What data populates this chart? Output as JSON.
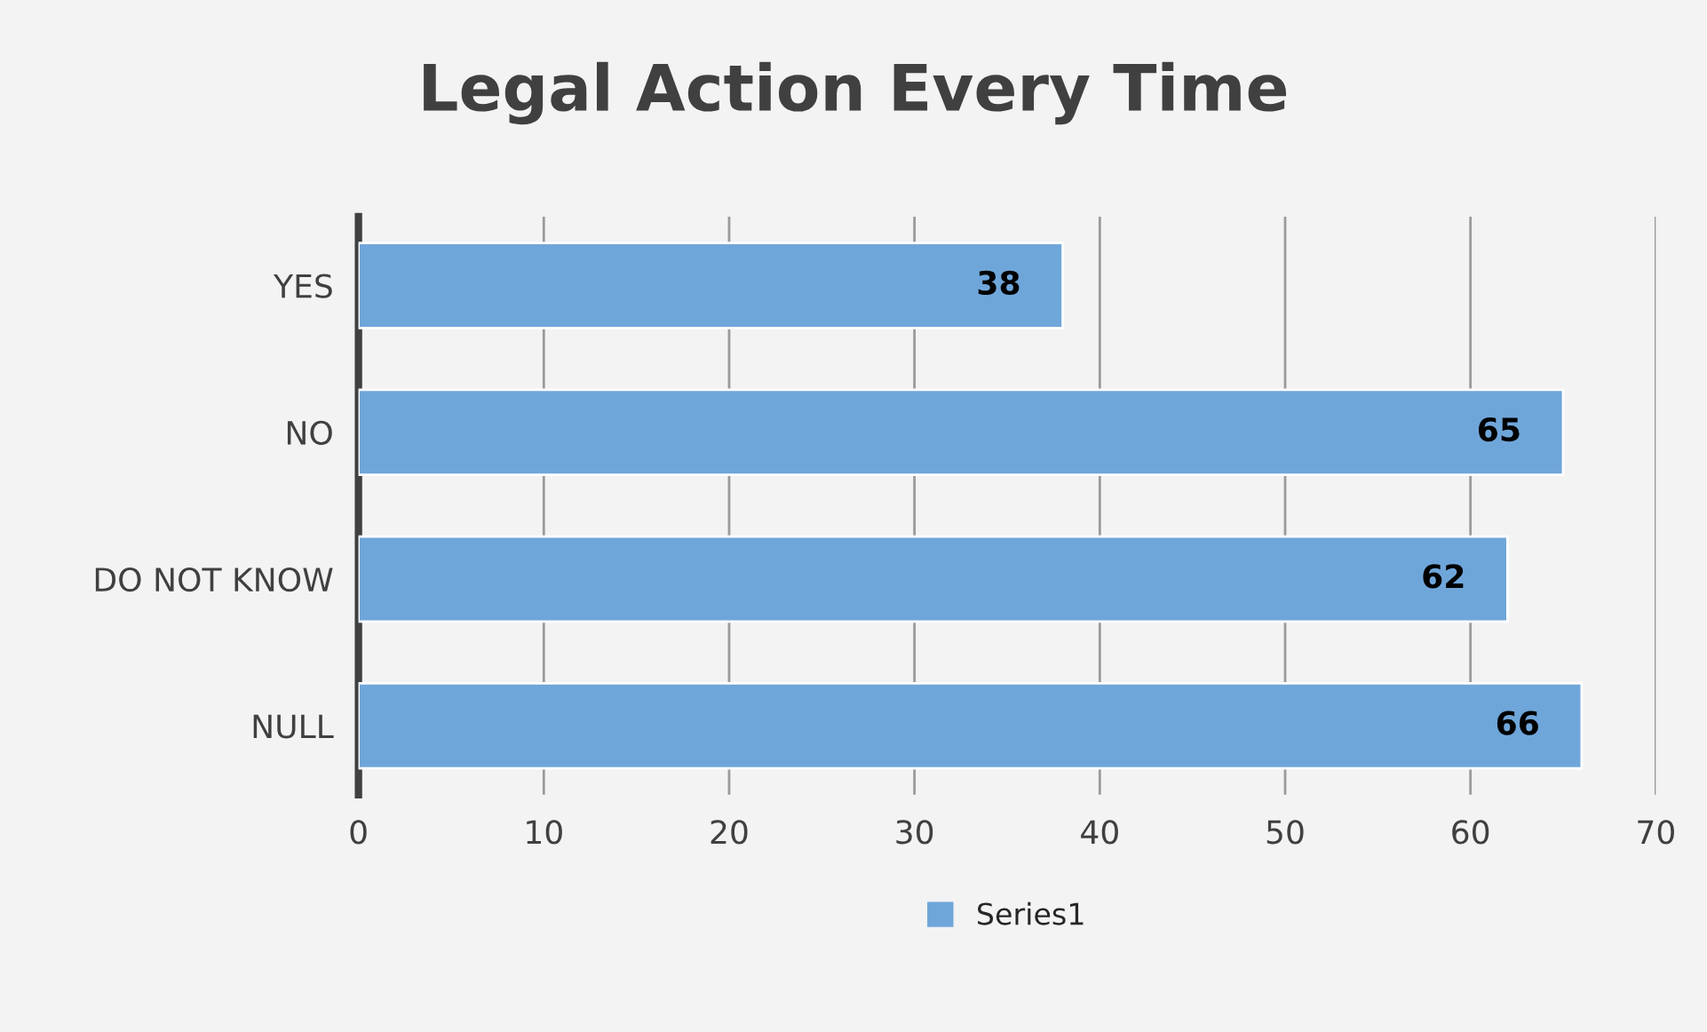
{
  "chart_data": {
    "type": "bar",
    "orientation": "horizontal",
    "title": "Legal Action Every Time",
    "categories": [
      "YES",
      "NO",
      "DO NOT KNOW",
      "NULL"
    ],
    "series": [
      {
        "name": "Series1",
        "color": "#6fa6da",
        "values": [
          38,
          65,
          62,
          66
        ]
      }
    ],
    "xlim": [
      0,
      70
    ],
    "xticks": [
      0,
      10,
      20,
      30,
      40,
      50,
      60,
      70
    ],
    "grid": "x",
    "legend": "bottom",
    "data_labels": true
  }
}
